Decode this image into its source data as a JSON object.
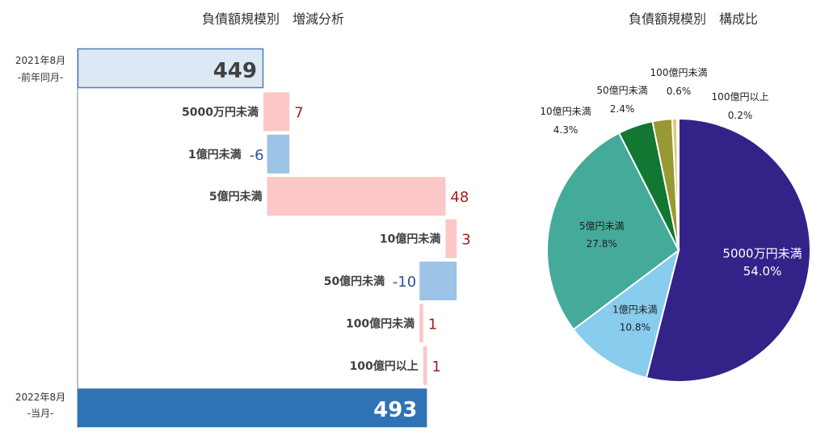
{
  "chart_data": [
    {
      "type": "bar",
      "subtype": "waterfall",
      "title": "負債額規模別　増減分析",
      "start": {
        "label_line1": "2021年8月",
        "label_line2": "-前年同月-",
        "value": 449
      },
      "steps": [
        {
          "label": "5000万円未満",
          "value": 7,
          "display": "7"
        },
        {
          "label": "1億円未満",
          "value": -6,
          "display": "-6"
        },
        {
          "label": "5億円未満",
          "value": 48,
          "display": "48"
        },
        {
          "label": "10億円未満",
          "value": 3,
          "display": "3"
        },
        {
          "label": "50億円未満",
          "value": -10,
          "display": "-10"
        },
        {
          "label": "100億円未満",
          "value": 1,
          "display": "1"
        },
        {
          "label": "100億円以上",
          "value": 1,
          "display": "1"
        }
      ],
      "end": {
        "label_line1": "2022年8月",
        "label_line2": "-当月-",
        "value": 493
      },
      "colors": {
        "start": "#dce9f5",
        "start_border": "#4f7fb5",
        "end": "#2e74b5",
        "increase": "#fcc7c7",
        "decrease": "#9dc3e6",
        "increase_text": "#a32020",
        "decrease_text": "#2f5597"
      }
    },
    {
      "type": "pie",
      "title": "負債額規模別　構成比",
      "slices": [
        {
          "label": "5000万円未満",
          "pct_label": "54.0%",
          "value": 54.0,
          "color": "#332288",
          "label_inside": true
        },
        {
          "label": "1億円未満",
          "pct_label": "10.8%",
          "value": 10.8,
          "color": "#88ccee",
          "label_inside": true
        },
        {
          "label": "5億円未満",
          "pct_label": "27.8%",
          "value": 27.8,
          "color": "#44aa99",
          "label_inside": true
        },
        {
          "label": "10億円未満",
          "pct_label": "4.3%",
          "value": 4.3,
          "color": "#117733",
          "label_inside": false
        },
        {
          "label": "50億円未満",
          "pct_label": "2.4%",
          "value": 2.4,
          "color": "#999933",
          "label_inside": false
        },
        {
          "label": "100億円未満",
          "pct_label": "0.6%",
          "value": 0.6,
          "color": "#ddcc77",
          "label_inside": false
        },
        {
          "label": "100億円以上",
          "pct_label": "0.2%",
          "value": 0.2,
          "color": "#cc6677",
          "label_inside": false
        }
      ]
    }
  ]
}
